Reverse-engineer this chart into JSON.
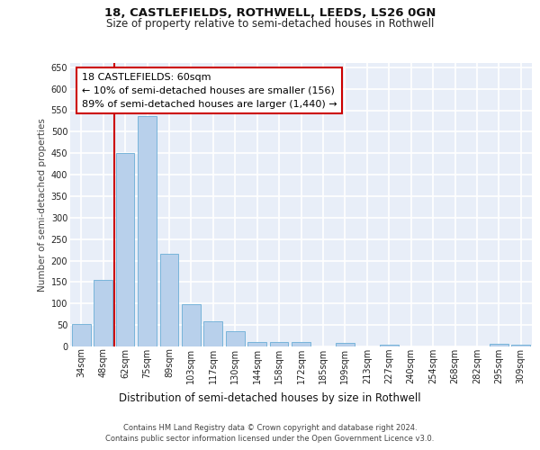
{
  "title1": "18, CASTLEFIELDS, ROTHWELL, LEEDS, LS26 0GN",
  "title2": "Size of property relative to semi-detached houses in Rothwell",
  "xlabel": "Distribution of semi-detached houses by size in Rothwell",
  "ylabel": "Number of semi-detached properties",
  "categories": [
    "34sqm",
    "48sqm",
    "62sqm",
    "75sqm",
    "89sqm",
    "103sqm",
    "117sqm",
    "130sqm",
    "144sqm",
    "158sqm",
    "172sqm",
    "185sqm",
    "199sqm",
    "213sqm",
    "227sqm",
    "240sqm",
    "254sqm",
    "268sqm",
    "282sqm",
    "295sqm",
    "309sqm"
  ],
  "values": [
    53,
    156,
    450,
    536,
    215,
    98,
    58,
    35,
    11,
    10,
    10,
    0,
    8,
    0,
    5,
    0,
    0,
    0,
    0,
    6,
    5
  ],
  "bar_color": "#b8d0eb",
  "bar_edge_color": "#6aaed6",
  "vline_x": 1.5,
  "vline_color": "#cc0000",
  "annotation_line1": "18 CASTLEFIELDS: 60sqm",
  "annotation_line2": "← 10% of semi-detached houses are smaller (156)",
  "annotation_line3": "89% of semi-detached houses are larger (1,440) →",
  "annotation_facecolor": "#ffffff",
  "annotation_edgecolor": "#cc0000",
  "footer1": "Contains HM Land Registry data © Crown copyright and database right 2024.",
  "footer2": "Contains public sector information licensed under the Open Government Licence v3.0.",
  "ylim": [
    0,
    660
  ],
  "yticks": [
    0,
    50,
    100,
    150,
    200,
    250,
    300,
    350,
    400,
    450,
    500,
    550,
    600,
    650
  ],
  "plot_bg": "#e8eef8",
  "grid_color": "#ffffff",
  "title1_fontsize": 9.5,
  "title2_fontsize": 8.5,
  "xlabel_fontsize": 8.5,
  "ylabel_fontsize": 7.5,
  "tick_fontsize": 7,
  "annot_fontsize": 8,
  "footer_fontsize": 6
}
